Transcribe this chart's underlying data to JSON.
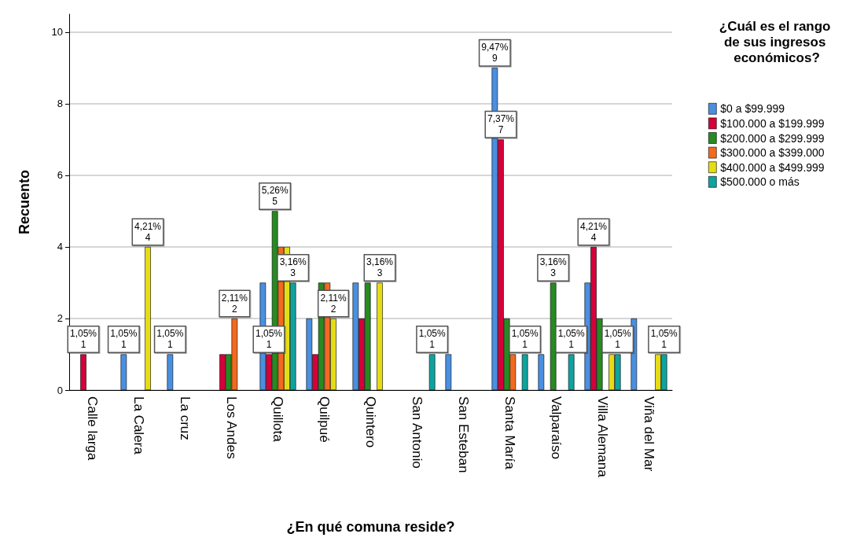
{
  "chart_data": {
    "type": "bar",
    "xlabel": "¿En qué comuna reside?",
    "ylabel": "Recuento",
    "legend_title": "¿Cuál es el rango de sus ingresos económicos?",
    "categories": [
      "Calle larga",
      "La Calera",
      "La cruz",
      "Los Andes",
      "Quillota",
      "Quilpué",
      "Quintero",
      "San Antonio",
      "San Esteban",
      "Santa María",
      "Valparaíso",
      "Villa Alemana",
      "Viña del Mar"
    ],
    "series": [
      {
        "name": "$0 a $99.999",
        "color": "#4a8fe0",
        "values": [
          0,
          1,
          1,
          0,
          3,
          2,
          3,
          0,
          1,
          9,
          1,
          3,
          2
        ],
        "value_labels": [
          null,
          "1,05%\n1",
          "1,05%\n1",
          null,
          null,
          null,
          null,
          null,
          null,
          "9,47%\n9",
          null,
          null,
          null
        ]
      },
      {
        "name": "$100.000 a $199.999",
        "color": "#d5003a",
        "values": [
          1,
          0,
          0,
          1,
          1,
          1,
          2,
          0,
          0,
          7,
          0,
          4,
          0
        ],
        "value_labels": [
          "1,05%\n1",
          null,
          null,
          null,
          "1,05%\n1",
          null,
          null,
          null,
          null,
          "7,37%\n7",
          null,
          "4,21%\n4",
          null
        ]
      },
      {
        "name": "$200.000 a $299.999",
        "color": "#288a22",
        "values": [
          0,
          0,
          0,
          1,
          5,
          3,
          3,
          0,
          0,
          2,
          3,
          2,
          0
        ],
        "value_labels": [
          null,
          null,
          null,
          null,
          "5,26%\n5",
          null,
          null,
          null,
          null,
          null,
          "3,16%\n3",
          null,
          null
        ]
      },
      {
        "name": "$300.000 a $399.000",
        "color": "#f26a1f",
        "values": [
          0,
          0,
          0,
          2,
          4,
          3,
          0,
          0,
          0,
          1,
          0,
          0,
          0
        ],
        "value_labels": [
          null,
          null,
          null,
          "2,11%\n2",
          null,
          null,
          null,
          null,
          null,
          null,
          null,
          null,
          null
        ]
      },
      {
        "name": "$400.000 a $499.999",
        "color": "#e6dc14",
        "values": [
          0,
          4,
          0,
          0,
          4,
          2,
          3,
          0,
          0,
          0,
          0,
          1,
          1
        ],
        "value_labels": [
          null,
          "4,21%\n4",
          null,
          null,
          null,
          "2,11%\n2",
          "3,16%\n3",
          null,
          null,
          null,
          null,
          null,
          null
        ]
      },
      {
        "name": "$500.000 o más",
        "color": "#0fa3a0",
        "values": [
          0,
          0,
          0,
          0,
          3,
          0,
          0,
          1,
          0,
          1,
          1,
          1,
          1
        ],
        "value_labels": [
          null,
          null,
          null,
          null,
          "3,16%\n3",
          null,
          null,
          "1,05%\n1",
          null,
          "1,05%\n1",
          "1,05%\n1",
          "1,05%\n1",
          "1,05%\n1"
        ]
      }
    ],
    "ylim": [
      0,
      10.5
    ],
    "yticks": [
      0,
      2,
      4,
      6,
      8,
      10
    ],
    "grid": "y",
    "legend": "right"
  }
}
